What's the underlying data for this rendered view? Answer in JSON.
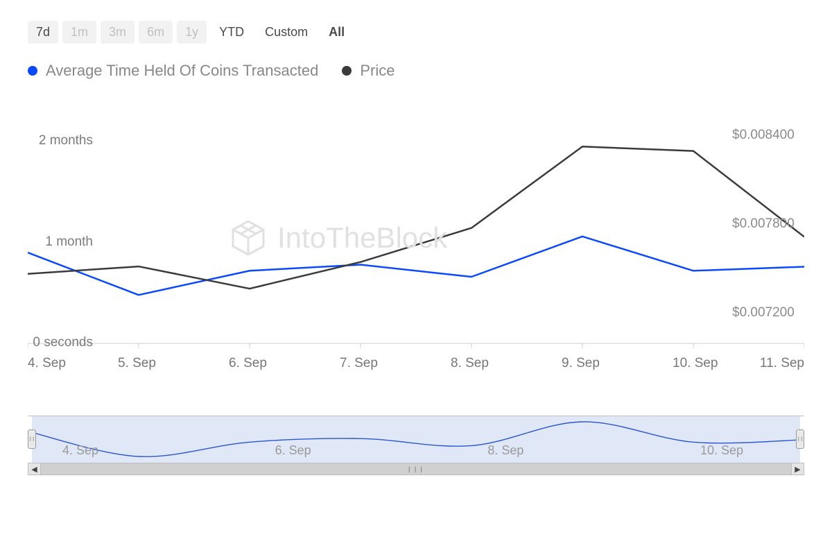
{
  "range_selector": {
    "options": [
      {
        "label": "7d",
        "style": "pill-grey dark"
      },
      {
        "label": "1m",
        "style": "pill-grey"
      },
      {
        "label": "3m",
        "style": "pill-grey"
      },
      {
        "label": "6m",
        "style": "pill-grey"
      },
      {
        "label": "1y",
        "style": "pill-grey"
      },
      {
        "label": "YTD",
        "style": "bare"
      },
      {
        "label": "Custom",
        "style": "bare"
      },
      {
        "label": "All",
        "style": "bare bold"
      }
    ]
  },
  "legend": {
    "series1_label": "Average Time Held Of Coins Transacted",
    "series1_color": "#0b49ff",
    "series2_label": "Price",
    "series2_color": "#3b3b3b"
  },
  "watermark": {
    "text": "IntoTheBlock"
  },
  "chart": {
    "type": "line",
    "background_color": "#ffffff",
    "grid_color": "#e6e6e6",
    "axis_text_color_left": "#7b7b7b",
    "axis_text_color_right": "#8b8b8b",
    "axis_text_color_x": "#777777",
    "axis_fontsize": 19,
    "line_width": 2.5,
    "x_categories": [
      "4. Sep",
      "5. Sep",
      "6. Sep",
      "7. Sep",
      "8. Sep",
      "9. Sep",
      "10. Sep",
      "11. Sep"
    ],
    "left_axis": {
      "title": null,
      "ticks": [
        {
          "value_months": 0,
          "label": "0 seconds"
        },
        {
          "value_months": 1,
          "label": "1 month"
        },
        {
          "value_months": 2,
          "label": "2 months"
        }
      ],
      "ylim_months": [
        0,
        2.2
      ]
    },
    "right_axis": {
      "title": null,
      "ticks": [
        {
          "value": 0.0072,
          "label": "$0.007200"
        },
        {
          "value": 0.0078,
          "label": "$0.007800"
        },
        {
          "value": 0.0084,
          "label": "$0.008400"
        }
      ],
      "ylim": [
        0.007,
        0.0085
      ]
    },
    "series": [
      {
        "name": "Average Time Held",
        "axis": "left",
        "color": "#0b49ff",
        "values_months": [
          0.9,
          0.48,
          0.72,
          0.78,
          0.66,
          1.06,
          0.72,
          0.76
        ]
      },
      {
        "name": "Price",
        "axis": "right",
        "color": "#3b3b3b",
        "values": [
          0.00747,
          0.00752,
          0.00737,
          0.00755,
          0.00778,
          0.00833,
          0.0083,
          0.00772
        ]
      }
    ]
  },
  "navigator": {
    "background_color": "#c7d3ee",
    "mask_opacity": 0.55,
    "line_color": "#2b55d4",
    "line_width": 1.4,
    "border_color": "#bfbfbf",
    "x_labels": [
      "4. Sep",
      "6. Sep",
      "8. Sep",
      "10. Sep"
    ],
    "series_values": [
      0.9,
      0.48,
      0.72,
      0.78,
      0.66,
      1.06,
      0.72,
      0.76
    ],
    "label_color": "#9a9a9a"
  }
}
